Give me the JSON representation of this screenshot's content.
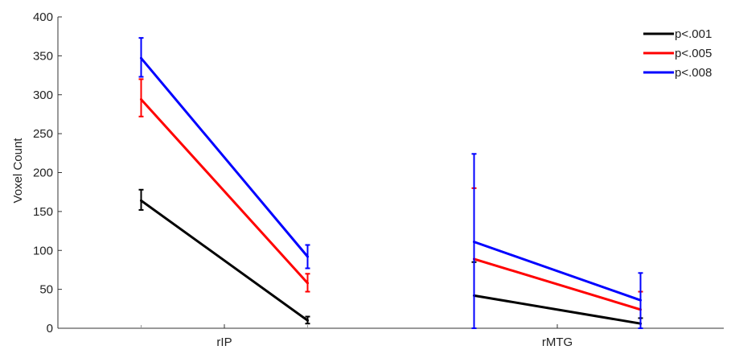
{
  "chart_data": {
    "type": "line",
    "ylabel": "Voxel Count",
    "xlabel": "",
    "ylim": [
      0,
      400
    ],
    "yticks": [
      0,
      50,
      100,
      150,
      200,
      250,
      300,
      350,
      400
    ],
    "groups": [
      {
        "label": "rIP",
        "x": [
          1,
          2
        ],
        "series": [
          {
            "name": "p<.001",
            "values": [
              164,
              10
            ],
            "errors": [
              [
                152,
                178
              ],
              [
                6,
                15
              ]
            ]
          },
          {
            "name": "p<.005",
            "values": [
              294,
              58
            ],
            "errors": [
              [
                272,
                320
              ],
              [
                47,
                70
              ]
            ]
          },
          {
            "name": "p<.008",
            "values": [
              347,
              92
            ],
            "errors": [
              [
                323,
                373
              ],
              [
                77,
                107
              ]
            ]
          }
        ]
      },
      {
        "label": "rMTG",
        "x": [
          3,
          4
        ],
        "series": [
          {
            "name": "p<.001",
            "values": [
              42,
              6
            ],
            "errors": [
              [
                0,
                85
              ],
              [
                0,
                13
              ]
            ]
          },
          {
            "name": "p<.005",
            "values": [
              89,
              24
            ],
            "errors": [
              [
                0,
                180
              ],
              [
                0,
                47
              ]
            ]
          },
          {
            "name": "p<.008",
            "values": [
              111,
              36
            ],
            "errors": [
              [
                0,
                224
              ],
              [
                0,
                71
              ]
            ]
          }
        ]
      }
    ],
    "legend": {
      "position": "top-right",
      "items": [
        {
          "label": "p<.001",
          "color": "#000000"
        },
        {
          "label": "p<.005",
          "color": "#ff0000"
        },
        {
          "label": "p<.008",
          "color": "#0000ff"
        }
      ]
    },
    "colors": {
      "p<.001": "#000000",
      "p<.005": "#ff0000",
      "p<.008": "#0000ff"
    },
    "grid": false
  }
}
